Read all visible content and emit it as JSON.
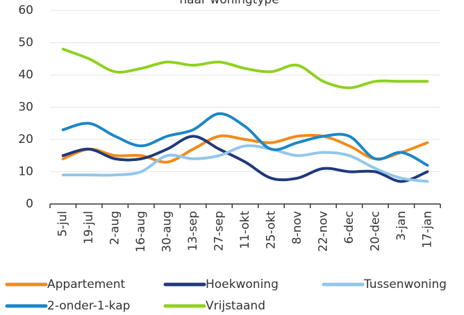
{
  "chart_data": {
    "type": "line",
    "title": "naar woningtype",
    "categories": [
      "5-jul",
      "19-jul",
      "2-aug",
      "16-aug",
      "30-aug",
      "13-sep",
      "27-sep",
      "11-okt",
      "25-okt",
      "8-nov",
      "22-nov",
      "6-dec",
      "20-dec",
      "3-jan",
      "17-jan"
    ],
    "series": [
      {
        "name": "Appartement",
        "color": "#f28a1c",
        "values": [
          14,
          17,
          15,
          15,
          13,
          17,
          21,
          20,
          19,
          21,
          21,
          18,
          14,
          16,
          19
        ]
      },
      {
        "name": "Hoekwoning",
        "color": "#1f3a7a",
        "values": [
          15,
          17,
          14,
          14,
          17,
          21,
          17,
          13,
          8,
          8,
          11,
          10,
          10,
          7,
          10
        ]
      },
      {
        "name": "Tussenwoning",
        "color": "#93c6ea",
        "values": [
          9,
          9,
          9,
          10,
          15,
          14,
          15,
          18,
          17,
          15,
          16,
          15,
          11,
          8,
          7
        ]
      },
      {
        "name": "2-onder-1-kap",
        "color": "#1a87c8",
        "values": [
          23,
          25,
          21,
          18,
          21,
          23,
          28,
          24,
          17,
          19,
          21,
          21,
          14,
          16,
          12
        ]
      },
      {
        "name": "Vrijstaand",
        "color": "#8fd11e",
        "values": [
          48,
          45,
          41,
          42,
          44,
          43,
          44,
          42,
          41,
          43,
          38,
          36,
          38,
          38,
          38
        ]
      }
    ],
    "ylim": [
      0,
      60
    ],
    "yticks": [
      0,
      10,
      20,
      30,
      40,
      50,
      60
    ],
    "grid": true
  }
}
